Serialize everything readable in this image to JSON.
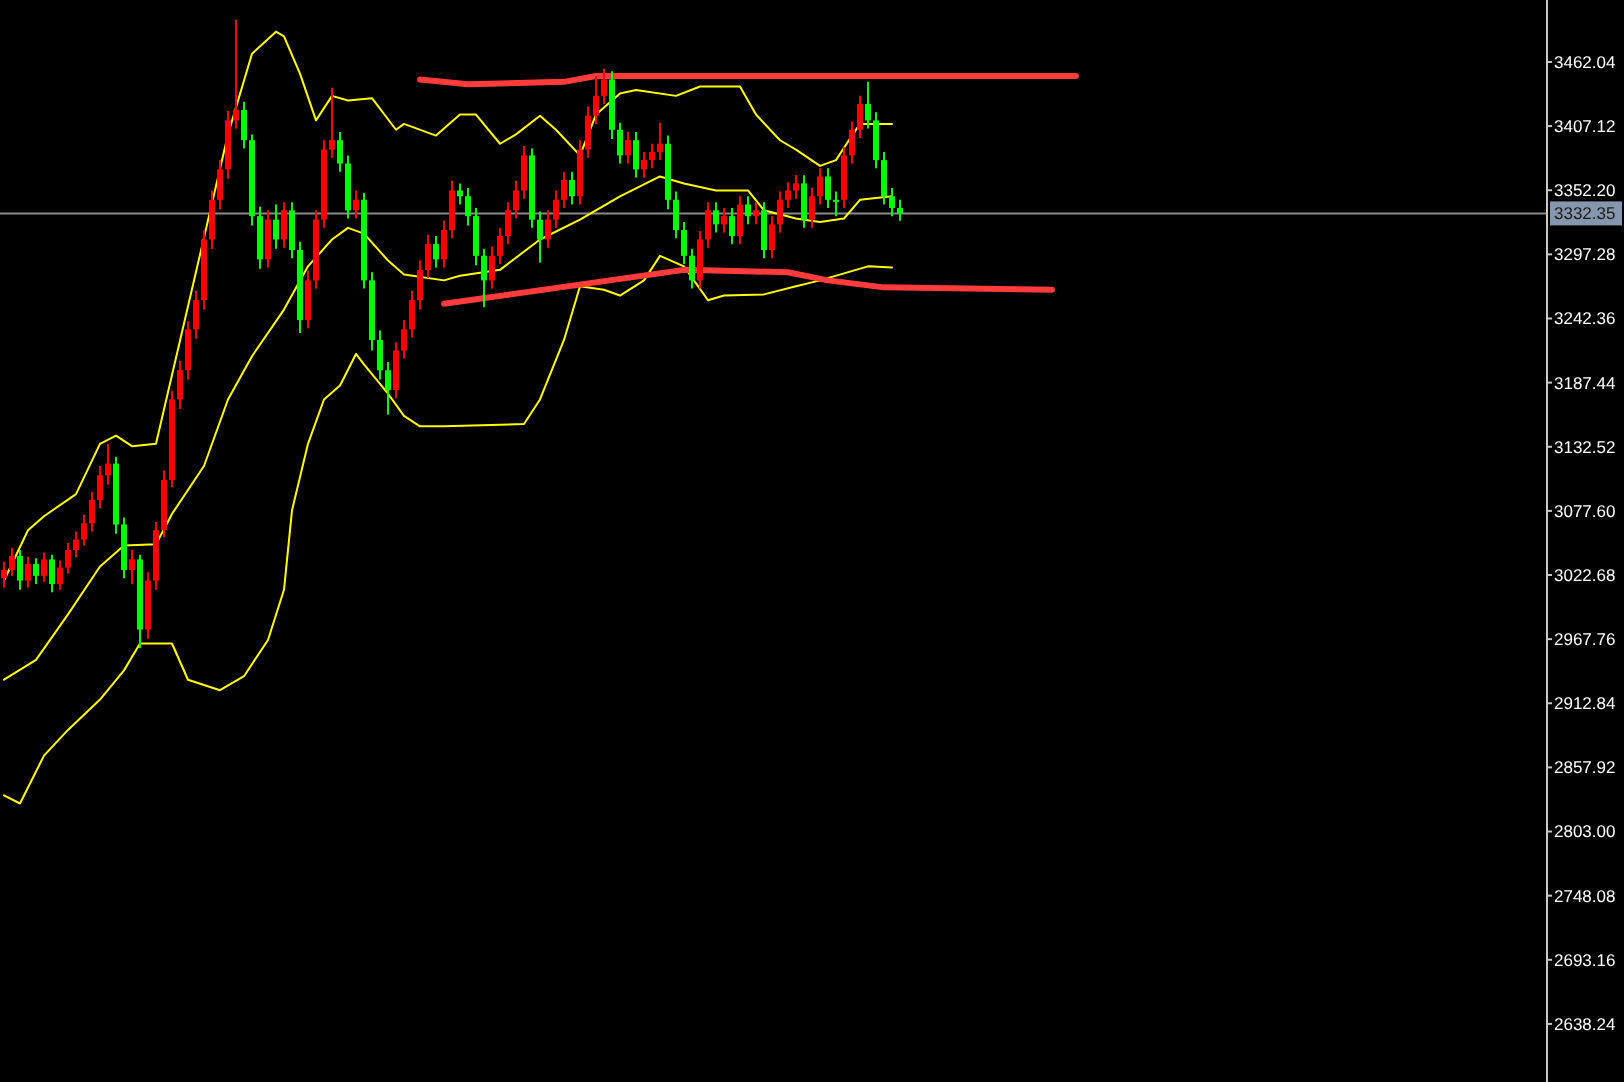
{
  "chart_data": {
    "type": "candlestick",
    "categories": [
      null,
      null,
      null,
      null,
      null,
      null,
      null,
      null,
      null,
      null,
      null,
      null,
      null,
      null,
      null,
      null,
      null,
      null,
      null,
      null,
      null,
      null,
      null,
      null,
      null,
      null,
      null,
      null,
      null,
      null,
      null,
      null,
      null,
      null,
      null,
      null,
      null,
      null,
      null,
      null,
      null,
      null,
      null,
      null,
      null,
      null,
      null,
      null,
      null,
      null,
      null,
      null,
      null,
      null,
      null,
      null,
      null,
      null,
      null,
      null,
      null,
      null,
      null,
      null,
      null,
      null,
      null,
      null,
      null,
      null,
      null,
      null,
      null,
      null,
      null,
      null,
      null,
      null,
      null,
      null,
      null,
      null,
      null,
      null,
      null,
      null,
      null,
      null,
      null,
      null,
      null,
      null,
      null,
      null,
      null,
      null,
      null,
      null,
      null,
      null,
      null,
      null,
      null,
      null,
      null,
      null,
      null,
      null,
      null,
      null,
      null,
      null,
      null,
      null,
      null,
      null,
      null,
      null,
      null,
      null,
      null,
      null,
      null,
      null,
      null,
      null,
      null,
      null,
      null,
      null,
      null,
      null,
      null,
      null,
      null,
      null,
      null,
      null,
      null,
      null,
      null,
      null,
      null,
      null,
      null,
      null,
      null,
      null,
      null,
      null,
      null,
      null,
      null,
      null,
      null,
      null,
      null,
      null,
      null,
      null,
      null,
      null,
      null,
      null,
      null,
      null,
      null,
      null,
      null,
      null,
      null,
      null,
      null,
      null,
      null,
      null,
      null,
      null,
      null,
      null,
      null,
      null,
      null,
      null,
      null,
      null,
      null,
      null,
      null,
      null,
      null,
      null,
      null
    ],
    "ohlc": [
      [
        3020,
        3034,
        3012,
        3027
      ],
      [
        3027,
        3046,
        3022,
        3039
      ],
      [
        3039,
        3044,
        3010,
        3018
      ],
      [
        3018,
        3038,
        3012,
        3032
      ],
      [
        3032,
        3037,
        3015,
        3022
      ],
      [
        3022,
        3042,
        3017,
        3036
      ],
      [
        3036,
        3040,
        3008,
        3015
      ],
      [
        3015,
        3035,
        3010,
        3029
      ],
      [
        3029,
        3050,
        3024,
        3044
      ],
      [
        3044,
        3060,
        3038,
        3053
      ],
      [
        3053,
        3074,
        3048,
        3067
      ],
      [
        3067,
        3094,
        3060,
        3087
      ],
      [
        3087,
        3116,
        3080,
        3108
      ],
      [
        3108,
        3135,
        3100,
        3118
      ],
      [
        3118,
        3124,
        3058,
        3066
      ],
      [
        3066,
        3072,
        3020,
        3027
      ],
      [
        3027,
        3044,
        3015,
        3036
      ],
      [
        3036,
        3040,
        2960,
        2976
      ],
      [
        2976,
        3025,
        2968,
        3018
      ],
      [
        3018,
        3068,
        3010,
        3061
      ],
      [
        3061,
        3112,
        3055,
        3104
      ],
      [
        3104,
        3180,
        3098,
        3173
      ],
      [
        3173,
        3206,
        3165,
        3198
      ],
      [
        3198,
        3240,
        3190,
        3233
      ],
      [
        3233,
        3266,
        3225,
        3258
      ],
      [
        3258,
        3318,
        3250,
        3310
      ],
      [
        3310,
        3352,
        3302,
        3344
      ],
      [
        3344,
        3378,
        3336,
        3370
      ],
      [
        3370,
        3420,
        3362,
        3412
      ],
      [
        3412,
        3498,
        3405,
        3421
      ],
      [
        3421,
        3428,
        3388,
        3395
      ],
      [
        3395,
        3400,
        3322,
        3330
      ],
      [
        3330,
        3338,
        3285,
        3293
      ],
      [
        3293,
        3335,
        3286,
        3327
      ],
      [
        3327,
        3340,
        3302,
        3310
      ],
      [
        3310,
        3342,
        3303,
        3335
      ],
      [
        3335,
        3342,
        3294,
        3301
      ],
      [
        3301,
        3308,
        3230,
        3241
      ],
      [
        3241,
        3283,
        3234,
        3275
      ],
      [
        3275,
        3335,
        3268,
        3327
      ],
      [
        3327,
        3395,
        3320,
        3387
      ],
      [
        3387,
        3440,
        3380,
        3395
      ],
      [
        3395,
        3402,
        3368,
        3375
      ],
      [
        3375,
        3382,
        3328,
        3335
      ],
      [
        3335,
        3352,
        3328,
        3344
      ],
      [
        3344,
        3350,
        3268,
        3275
      ],
      [
        3275,
        3282,
        3215,
        3224
      ],
      [
        3224,
        3232,
        3190,
        3198
      ],
      [
        3198,
        3205,
        3160,
        3181
      ],
      [
        3181,
        3222,
        3174,
        3215
      ],
      [
        3215,
        3241,
        3208,
        3233
      ],
      [
        3233,
        3266,
        3226,
        3258
      ],
      [
        3258,
        3292,
        3250,
        3284
      ],
      [
        3284,
        3314,
        3277,
        3306
      ],
      [
        3306,
        3313,
        3286,
        3293
      ],
      [
        3293,
        3326,
        3286,
        3318
      ],
      [
        3318,
        3360,
        3311,
        3352
      ],
      [
        3352,
        3358,
        3340,
        3347
      ],
      [
        3347,
        3354,
        3322,
        3330
      ],
      [
        3330,
        3337,
        3288,
        3296
      ],
      [
        3296,
        3302,
        3252,
        3275
      ],
      [
        3275,
        3304,
        3268,
        3296
      ],
      [
        3296,
        3320,
        3289,
        3313
      ],
      [
        3313,
        3342,
        3306,
        3335
      ],
      [
        3335,
        3360,
        3328,
        3352
      ],
      [
        3352,
        3390,
        3345,
        3382
      ],
      [
        3382,
        3388,
        3320,
        3327
      ],
      [
        3327,
        3334,
        3290,
        3310
      ],
      [
        3310,
        3335,
        3303,
        3327
      ],
      [
        3327,
        3352,
        3320,
        3344
      ],
      [
        3344,
        3368,
        3337,
        3361
      ],
      [
        3361,
        3368,
        3340,
        3347
      ],
      [
        3347,
        3395,
        3340,
        3387
      ],
      [
        3387,
        3424,
        3380,
        3416
      ],
      [
        3416,
        3450,
        3409,
        3433
      ],
      [
        3433,
        3456,
        3426,
        3447
      ],
      [
        3447,
        3454,
        3396,
        3404
      ],
      [
        3404,
        3410,
        3375,
        3382
      ],
      [
        3382,
        3402,
        3375,
        3395
      ],
      [
        3395,
        3402,
        3363,
        3370
      ],
      [
        3370,
        3385,
        3363,
        3378
      ],
      [
        3378,
        3392,
        3371,
        3385
      ],
      [
        3385,
        3410,
        3378,
        3392
      ],
      [
        3392,
        3399,
        3336,
        3344
      ],
      [
        3344,
        3351,
        3311,
        3318
      ],
      [
        3318,
        3325,
        3289,
        3296
      ],
      [
        3296,
        3302,
        3268,
        3275
      ],
      [
        3275,
        3317,
        3268,
        3310
      ],
      [
        3310,
        3342,
        3303,
        3335
      ],
      [
        3335,
        3342,
        3316,
        3323
      ],
      [
        3323,
        3337,
        3316,
        3330
      ],
      [
        3330,
        3337,
        3306,
        3313
      ],
      [
        3313,
        3347,
        3306,
        3340
      ],
      [
        3340,
        3347,
        3323,
        3330
      ],
      [
        3330,
        3342,
        3323,
        3335
      ],
      [
        3335,
        3342,
        3294,
        3301
      ],
      [
        3301,
        3330,
        3294,
        3323
      ],
      [
        3323,
        3351,
        3316,
        3344
      ],
      [
        3344,
        3359,
        3337,
        3352
      ],
      [
        3352,
        3365,
        3345,
        3358
      ],
      [
        3358,
        3365,
        3320,
        3327
      ],
      [
        3327,
        3354,
        3320,
        3347
      ],
      [
        3347,
        3371,
        3340,
        3364
      ],
      [
        3364,
        3371,
        3337,
        3344
      ],
      [
        3344,
        3351,
        3330,
        3344
      ],
      [
        3344,
        3389,
        3337,
        3382
      ],
      [
        3382,
        3411,
        3375,
        3404
      ],
      [
        3404,
        3433,
        3397,
        3426
      ],
      [
        3426,
        3445,
        3405,
        3412
      ],
      [
        3412,
        3419,
        3371,
        3378
      ],
      [
        3378,
        3385,
        3340,
        3347
      ],
      [
        3347,
        3354,
        3330,
        3337
      ],
      [
        3337,
        3344,
        3326,
        3332.35
      ],
      null,
      null,
      null,
      null,
      null,
      null,
      null,
      null,
      null,
      null,
      null,
      null,
      null,
      null,
      null,
      null,
      null,
      null,
      null,
      null,
      null,
      null,
      null,
      null,
      null,
      null,
      null,
      null,
      null,
      null,
      null,
      null,
      null,
      null,
      null,
      null,
      null,
      null,
      null,
      null,
      null,
      null,
      null,
      null,
      null,
      null,
      null,
      null,
      null,
      null,
      null,
      null,
      null,
      null,
      null,
      null,
      null,
      null,
      null,
      null,
      null,
      null,
      null,
      null,
      null,
      null,
      null,
      null,
      null,
      null,
      null,
      null,
      null,
      null,
      null,
      null,
      null,
      null,
      null,
      null
    ],
    "colors": [
      "#ff0000",
      "#ff0000",
      "#00ff00",
      "#ff0000",
      "#00ff00",
      "#ff0000",
      "#00ff00",
      "#ff0000",
      "#ff0000",
      "#ff0000",
      "#ff0000",
      "#ff0000",
      "#ff0000",
      "#ff0000",
      "#00ff00",
      "#00ff00",
      "#ff0000",
      "#00ff00",
      "#ff0000",
      "#ff0000",
      "#ff0000",
      "#ff0000",
      "#ff0000",
      "#ff0000",
      "#ff0000",
      "#ff0000",
      "#ff0000",
      "#ff0000",
      "#ff0000",
      "#ff0000",
      "#00ff00",
      "#00ff00",
      "#00ff00",
      "#ff0000",
      "#00ff00",
      "#ff0000",
      "#00ff00",
      "#00ff00",
      "#ff0000",
      "#ff0000",
      "#ff0000",
      "#ff0000",
      "#00ff00",
      "#00ff00",
      "#ff0000",
      "#00ff00",
      "#00ff00",
      "#00ff00",
      "#00ff00",
      "#ff0000",
      "#ff0000",
      "#ff0000",
      "#ff0000",
      "#ff0000",
      "#00ff00",
      "#ff0000",
      "#ff0000",
      "#00ff00",
      "#00ff00",
      "#00ff00",
      "#00ff00",
      "#ff0000",
      "#ff0000",
      "#ff0000",
      "#ff0000",
      "#ff0000",
      "#00ff00",
      "#00ff00",
      "#ff0000",
      "#ff0000",
      "#ff0000",
      "#00ff00",
      "#ff0000",
      "#ff0000",
      "#ff0000",
      "#ff0000",
      "#00ff00",
      "#00ff00",
      "#ff0000",
      "#00ff00",
      "#ff0000",
      "#ff0000",
      "#ff0000",
      "#00ff00",
      "#00ff00",
      "#00ff00",
      "#00ff00",
      "#ff0000",
      "#ff0000",
      "#00ff00",
      "#ff0000",
      "#00ff00",
      "#ff0000",
      "#00ff00",
      "#ff0000",
      "#00ff00",
      "#ff0000",
      "#ff0000",
      "#ff0000",
      "#ff0000",
      "#00ff00",
      "#ff0000",
      "#ff0000",
      "#00ff00",
      "#00ff00",
      "#ff0000",
      "#ff0000",
      "#ff0000",
      "#00ff00",
      "#00ff00",
      "#00ff00",
      "#00ff00",
      "#00ff00",
      null,
      null,
      null,
      null,
      null,
      null,
      null,
      null,
      null,
      null,
      null,
      null,
      null,
      null,
      null,
      null,
      null,
      null,
      null,
      null,
      null,
      null,
      null,
      null,
      null,
      null,
      null,
      null,
      null,
      null,
      null,
      null,
      null,
      null,
      null,
      null,
      null,
      null,
      null,
      null,
      null,
      null,
      null,
      null,
      null,
      null,
      null,
      null,
      null,
      null,
      null,
      null,
      null,
      null,
      null,
      null,
      null,
      null,
      null,
      null,
      null,
      null,
      null,
      null,
      null,
      null,
      null,
      null,
      null,
      null,
      null,
      null,
      null,
      null,
      null,
      null,
      null,
      null,
      null,
      null
    ],
    "series": [
      {
        "type": "line",
        "color": "#ffff00",
        "values": [
          3018,
          null,
          null,
          3061,
          null,
          3073,
          null,
          null,
          null,
          3092,
          null,
          null,
          3135,
          null,
          3142,
          null,
          3133,
          null,
          null,
          3135,
          null,
          null,
          null,
          null,
          null,
          null,
          null,
          null,
          3400,
          null,
          null,
          3469,
          null,
          null,
          3488,
          3484,
          null,
          3452,
          null,
          3412,
          null,
          3433,
          null,
          3429,
          null,
          null,
          3431,
          null,
          null,
          3404,
          3409,
          null,
          null,
          null,
          3399,
          null,
          null,
          3417,
          null,
          3417,
          null,
          null,
          3392,
          null,
          3400,
          null,
          null,
          3416,
          null,
          3404,
          null,
          null,
          3382,
          null,
          3417,
          null,
          null,
          3435,
          null,
          3438,
          null,
          null,
          null,
          null,
          3433,
          null,
          null,
          3441,
          null,
          null,
          null,
          null,
          3441,
          null,
          3417,
          null,
          null,
          3395,
          null,
          3387,
          null,
          null,
          3373,
          null,
          3378,
          null,
          3399,
          3409,
          null,
          null,
          null,
          3409,
          null,
          null,
          null,
          null,
          null,
          null,
          null,
          null,
          null,
          null,
          null,
          null,
          null,
          null,
          null,
          null,
          null,
          null,
          null,
          null,
          null,
          null,
          null,
          null,
          null,
          null,
          null,
          null,
          null,
          null,
          null,
          null,
          null,
          null,
          null,
          null,
          null,
          null,
          null,
          null,
          null,
          null,
          null,
          null,
          null,
          null,
          null,
          null,
          null,
          null,
          null,
          null,
          null,
          null,
          null,
          null,
          null,
          null,
          null,
          null,
          null,
          null,
          null,
          null,
          null,
          null,
          null,
          null,
          null,
          null,
          null,
          null,
          null,
          null,
          null,
          null,
          null,
          null,
          null,
          null,
          null
        ]
      },
      {
        "type": "line",
        "color": "#ffff00",
        "values": [
          2933,
          null,
          null,
          null,
          2950,
          null,
          null,
          null,
          2989,
          null,
          null,
          null,
          3030,
          null,
          null,
          3048,
          null,
          null,
          null,
          3049,
          null,
          3075,
          null,
          null,
          null,
          3116,
          null,
          null,
          3173,
          null,
          null,
          3210,
          null,
          null,
          null,
          3250,
          null,
          null,
          3287,
          null,
          null,
          3310,
          null,
          3320,
          null,
          3315,
          null,
          null,
          3292,
          null,
          3280,
          null,
          null,
          null,
          null,
          3275,
          null,
          3279,
          null,
          null,
          null,
          null,
          3284,
          null,
          null,
          null,
          null,
          3310,
          null,
          null,
          null,
          null,
          3327,
          null,
          null,
          null,
          null,
          3347,
          null,
          null,
          null,
          null,
          3364,
          null,
          null,
          3358,
          null,
          null,
          null,
          3352,
          null,
          null,
          null,
          3352,
          null,
          3335,
          null,
          null,
          null,
          3328,
          null,
          null,
          3325,
          null,
          null,
          3328,
          null,
          3344,
          null,
          null,
          null,
          3347,
          null,
          null,
          null,
          null,
          null,
          null,
          null,
          null,
          null,
          null,
          null,
          null,
          null,
          null,
          null,
          null,
          null,
          null,
          null,
          null,
          null,
          null,
          null,
          null,
          null,
          null,
          null,
          null,
          null,
          null,
          null,
          null,
          null,
          null,
          null,
          null,
          null,
          null,
          null,
          null,
          null,
          null,
          null,
          null,
          null,
          null,
          null,
          null,
          null,
          null,
          null,
          null,
          null,
          null,
          null,
          null,
          null,
          null,
          null,
          null,
          null,
          null,
          null,
          null,
          null,
          null,
          null,
          null,
          null,
          null,
          null,
          null,
          null,
          null,
          null,
          null,
          null,
          null,
          null,
          null,
          null
        ]
      },
      {
        "type": "line",
        "color": "#ffff00",
        "values": [
          2834,
          null,
          2827,
          null,
          null,
          2868,
          null,
          null,
          2890,
          null,
          null,
          null,
          2916,
          null,
          null,
          2941,
          null,
          2964,
          null,
          null,
          null,
          2964,
          null,
          2933,
          null,
          null,
          null,
          2924,
          null,
          null,
          2936,
          null,
          null,
          2967,
          null,
          3010,
          3078,
          null,
          3135,
          null,
          3173,
          null,
          3185,
          null,
          3212,
          3203,
          null,
          null,
          3178,
          null,
          3159,
          null,
          3150,
          null,
          null,
          3150,
          null,
          null,
          null,
          null,
          null,
          null,
          null,
          null,
          null,
          3152,
          null,
          3173,
          null,
          null,
          3224,
          null,
          3270,
          null,
          null,
          3267,
          null,
          3262,
          null,
          null,
          3275,
          null,
          3296,
          null,
          null,
          3287,
          null,
          null,
          3258,
          null,
          3262,
          null,
          null,
          null,
          null,
          3263,
          null,
          null,
          null,
          3270,
          null,
          null,
          3275,
          null,
          null,
          3281,
          null,
          null,
          3287,
          null,
          null,
          3286,
          null,
          null,
          null,
          null,
          null,
          null,
          null,
          null,
          null,
          null,
          null,
          null,
          null,
          null,
          null,
          null,
          null,
          null,
          null,
          null,
          null,
          null,
          null,
          null,
          null,
          null,
          null,
          null,
          null,
          null,
          null,
          null,
          null,
          null,
          null,
          null,
          null,
          null,
          null,
          null,
          null,
          null,
          null,
          null,
          null,
          null,
          null,
          null,
          null,
          null,
          null,
          null,
          null,
          null,
          null,
          null,
          null,
          null,
          null,
          null,
          null,
          null,
          null,
          null,
          null,
          null,
          null,
          null,
          null,
          null,
          null,
          null,
          null,
          null,
          null,
          null,
          null,
          null,
          null,
          null,
          null
        ]
      },
      {
        "type": "line",
        "color": "#ff3b3b",
        "values": [
          null,
          null,
          null,
          null,
          null,
          null,
          null,
          null,
          null,
          null,
          null,
          null,
          null,
          null,
          null,
          null,
          null,
          null,
          null,
          null,
          null,
          null,
          null,
          null,
          null,
          null,
          null,
          null,
          null,
          null,
          null,
          null,
          null,
          null,
          null,
          null,
          null,
          null,
          null,
          null,
          null,
          null,
          null,
          null,
          null,
          null,
          null,
          null,
          null,
          null,
          null,
          null,
          3447,
          null,
          null,
          null,
          null,
          null,
          3443,
          null,
          null,
          null,
          null,
          null,
          null,
          null,
          null,
          null,
          null,
          null,
          3445,
          null,
          null,
          null,
          3450,
          null,
          null,
          null,
          null,
          null,
          null,
          null,
          null,
          null,
          null,
          3450,
          null,
          null,
          null,
          null,
          null,
          null,
          null,
          null,
          null,
          null,
          null,
          null,
          null,
          null,
          null,
          null,
          null,
          null,
          null,
          null,
          null,
          null,
          null,
          null,
          null,
          null,
          null,
          null,
          null,
          null,
          null,
          null,
          null,
          null,
          null,
          null,
          null,
          null,
          null,
          null,
          null,
          null,
          null,
          null,
          null,
          null,
          null,
          null,
          3450,
          null,
          null,
          null,
          null,
          null,
          null,
          null,
          null,
          null,
          null,
          null,
          null,
          null,
          null,
          null,
          null,
          null,
          null,
          null,
          null,
          null,
          null,
          null,
          null,
          null,
          null,
          null,
          null,
          null,
          null,
          null,
          null,
          null,
          null,
          null,
          null,
          null,
          null,
          null,
          null,
          null,
          null,
          null,
          null,
          null,
          null,
          null,
          null,
          null,
          null,
          null,
          null,
          null,
          null,
          null,
          null,
          null,
          null
        ]
      },
      {
        "type": "line",
        "color": "#ff3b3b",
        "values": [
          null,
          null,
          null,
          null,
          null,
          null,
          null,
          null,
          null,
          null,
          null,
          null,
          null,
          null,
          null,
          null,
          null,
          null,
          null,
          null,
          null,
          null,
          null,
          null,
          null,
          null,
          null,
          null,
          null,
          null,
          null,
          null,
          null,
          null,
          null,
          null,
          null,
          null,
          null,
          null,
          null,
          null,
          null,
          null,
          null,
          null,
          null,
          null,
          null,
          null,
          null,
          null,
          null,
          null,
          null,
          3255,
          null,
          null,
          null,
          null,
          null,
          null,
          null,
          null,
          null,
          null,
          null,
          null,
          null,
          null,
          null,
          null,
          null,
          null,
          null,
          null,
          null,
          null,
          null,
          null,
          null,
          null,
          null,
          null,
          null,
          3284,
          null,
          null,
          null,
          null,
          null,
          null,
          null,
          null,
          null,
          null,
          null,
          null,
          3282,
          null,
          null,
          null,
          null,
          3275,
          null,
          null,
          null,
          null,
          null,
          null,
          3269,
          null,
          null,
          null,
          null,
          null,
          null,
          null,
          null,
          null,
          null,
          null,
          null,
          null,
          null,
          null,
          null,
          null,
          null,
          null,
          null,
          3267,
          null,
          null,
          null,
          null,
          null,
          null,
          null,
          null,
          null,
          null,
          null,
          null,
          null,
          null,
          null,
          null,
          null,
          null,
          null,
          null,
          null,
          null,
          null,
          null,
          null,
          null,
          null,
          null,
          null,
          null,
          null,
          null,
          null,
          null,
          null,
          null,
          null,
          null,
          null,
          null,
          null,
          null,
          null,
          null,
          null,
          null,
          null,
          null,
          null,
          null,
          null,
          null,
          null,
          null,
          null,
          null,
          null,
          null,
          null,
          null,
          null
        ]
      }
    ],
    "ref_lines": [
      {
        "axis": "y",
        "value": 3332.35,
        "label": "3332.35",
        "color": "#8a8a8a"
      }
    ],
    "ylim": [
      2588.5,
      3515.1
    ],
    "yticks": [
      3462.04,
      3407.12,
      {
        "value": 3352.2,
        "label": "3352.20"
      },
      3297.28,
      3242.36,
      3187.44,
      3132.52,
      {
        "value": 3077.6,
        "label": "3077.60"
      },
      3022.68,
      2967.76,
      2912.84,
      2857.92,
      {
        "value": 2803,
        "label": "2803.00"
      },
      2748.08,
      2693.16,
      2638.24
    ],
    "tick_labels": "y"
  }
}
